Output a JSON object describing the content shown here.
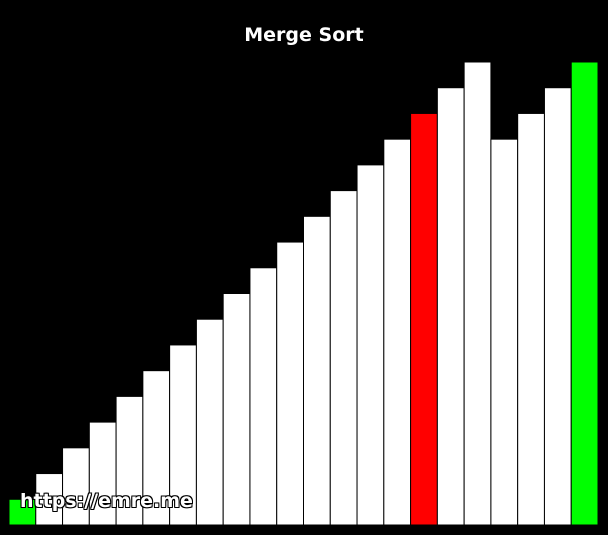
{
  "chart_data": {
    "type": "bar",
    "title": "Merge Sort",
    "xlabel": "",
    "ylabel": "",
    "values": [
      1,
      2,
      3,
      4,
      5,
      6,
      7,
      8,
      9,
      10,
      11,
      12,
      13,
      14,
      15,
      16,
      17,
      18,
      15,
      16,
      17,
      18
    ],
    "bar_colors": [
      "#00ff00",
      "#ffffff",
      "#ffffff",
      "#ffffff",
      "#ffffff",
      "#ffffff",
      "#ffffff",
      "#ffffff",
      "#ffffff",
      "#ffffff",
      "#ffffff",
      "#ffffff",
      "#ffffff",
      "#ffffff",
      "#ffffff",
      "#red",
      "#ffffff",
      "#ffffff",
      "#ffffff",
      "#ffffff",
      "#ffffff",
      "#00ff00"
    ],
    "colors": {
      "default": "#ffffff",
      "compare": "#ff0000",
      "marker": "#00ff00",
      "background": "#000000",
      "edge": "#000000"
    },
    "highlight_indices": {
      "compare": [
        15
      ],
      "marker": [
        0,
        21
      ]
    },
    "ylim": [
      0,
      18
    ],
    "grid": false,
    "legend": "none"
  },
  "watermark": "https://emre.me"
}
